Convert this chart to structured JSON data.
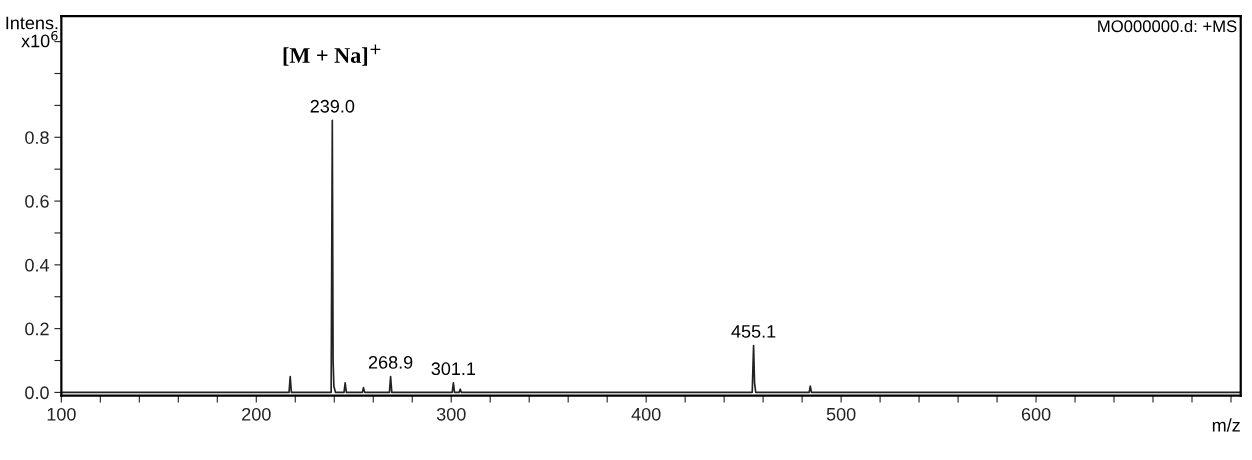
{
  "chart_data": {
    "type": "line",
    "ylabel": "Intens.\nx10$^{6}$",
    "xlabel": "m/z",
    "x": [
      100,
      150,
      200,
      216.8,
      217.4,
      218.0,
      238.4,
      239.0,
      239.4,
      239.8,
      240.6,
      245.0,
      245.6,
      246.2,
      254.4,
      255.0,
      255.6,
      268.3,
      268.9,
      269.5,
      300.5,
      301.1,
      301.7,
      304.0,
      304.6,
      305.2,
      454.4,
      455.1,
      455.6,
      456.2,
      483.6,
      484.2,
      484.8,
      520,
      600,
      705
    ],
    "series": [
      {
        "color": "#222222",
        "values": [
          0,
          0,
          0,
          0,
          0.05,
          0,
          0,
          0.853,
          0.1,
          0.02,
          0,
          0,
          0.03,
          0,
          0,
          0.015,
          0,
          0,
          0.05,
          0,
          0,
          0.03,
          0,
          0,
          0.01,
          0,
          0,
          0.147,
          0.03,
          0,
          0,
          0.02,
          0,
          0,
          0,
          0
        ]
      }
    ],
    "xlim": [
      100,
      705
    ],
    "ylim": [
      -0.01,
      1.18
    ],
    "xticks": [
      100,
      {
        "value": 120,
        "label": null
      },
      {
        "value": 140,
        "label": null
      },
      {
        "value": 160,
        "label": null
      },
      {
        "value": 180,
        "label": null
      },
      200,
      {
        "value": 220,
        "label": null
      },
      {
        "value": 240,
        "label": null
      },
      {
        "value": 260,
        "label": null
      },
      {
        "value": 280,
        "label": null
      },
      300,
      {
        "value": 320,
        "label": null
      },
      {
        "value": 340,
        "label": null
      },
      {
        "value": 360,
        "label": null
      },
      {
        "value": 380,
        "label": null
      },
      400,
      {
        "value": 420,
        "label": null
      },
      {
        "value": 440,
        "label": null
      },
      {
        "value": 460,
        "label": null
      },
      {
        "value": 480,
        "label": null
      },
      500,
      {
        "value": 520,
        "label": null
      },
      {
        "value": 540,
        "label": null
      },
      {
        "value": 560,
        "label": null
      },
      {
        "value": 580,
        "label": null
      },
      600,
      {
        "value": 620,
        "label": null
      },
      {
        "value": 640,
        "label": null
      },
      {
        "value": 660,
        "label": null
      },
      {
        "value": 680,
        "label": null
      },
      {
        "value": 700,
        "label": null
      }
    ],
    "yticks": [
      {
        "value": 0,
        "label": "0.0"
      },
      {
        "value": 0.1,
        "label": null
      },
      {
        "value": 0.2,
        "label": "0.2"
      },
      {
        "value": 0.3,
        "label": null
      },
      {
        "value": 0.4,
        "label": "0.4"
      },
      {
        "value": 0.5,
        "label": null
      },
      {
        "value": 0.6,
        "label": "0.6"
      },
      {
        "value": 0.7,
        "label": null
      },
      {
        "value": 0.8,
        "label": "0.8"
      },
      {
        "value": 0.9,
        "label": null
      },
      {
        "value": 1.0,
        "label": null
      },
      {
        "value": 1.1,
        "label": null
      }
    ],
    "grid": false,
    "annotations": [
      {
        "text": "[M + Na]$^{+}$",
        "x": 239.0,
        "y": 0.853
      },
      {
        "text": "239.0",
        "x": 239.0,
        "y": 0.853
      },
      {
        "text": "268.9",
        "x": 268.9,
        "y": 0.05
      },
      {
        "text": "301.1",
        "x": 301.1,
        "y": 0.03
      },
      {
        "text": "455.1",
        "x": 455.1,
        "y": 0.147
      },
      "MO000000.d: +MS"
    ]
  }
}
